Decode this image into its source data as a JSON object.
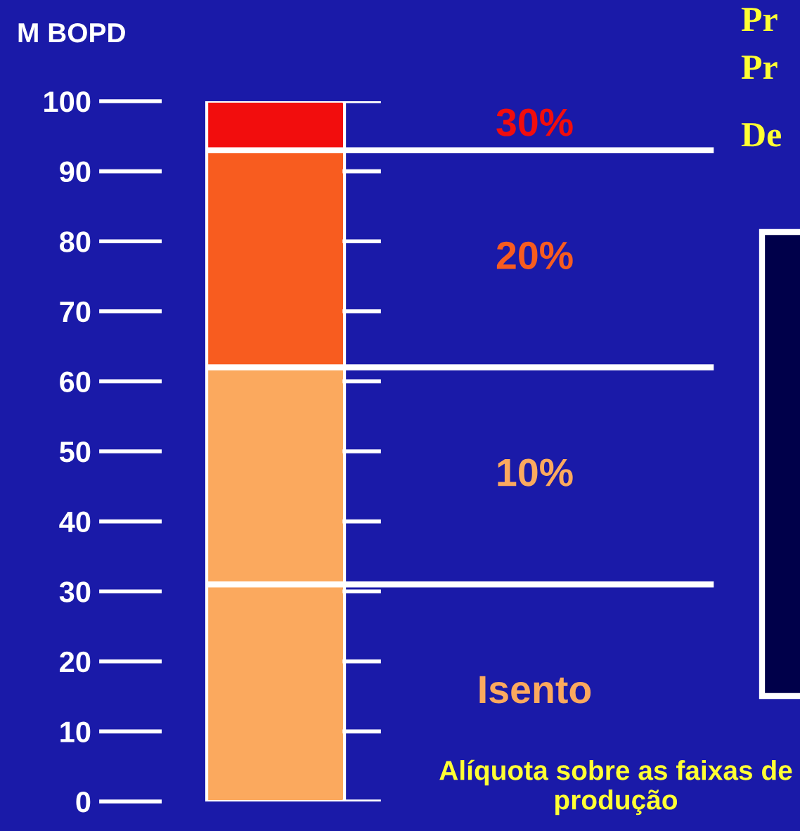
{
  "chart_data": {
    "type": "bar",
    "stacked": true,
    "categories": [
      null
    ],
    "ylabel": "M BOPD",
    "ylim": [
      0,
      100
    ],
    "yticks": [
      0,
      10,
      20,
      30,
      40,
      50,
      60,
      70,
      80,
      90,
      100
    ],
    "grid": false,
    "series": [
      {
        "name": "Isento",
        "color": "#fba95e",
        "values": [
          31
        ]
      },
      {
        "name": "10%",
        "color": "#fba95e",
        "values": [
          31
        ]
      },
      {
        "name": "20%",
        "color": "#f85c1f",
        "values": [
          31
        ]
      },
      {
        "name": "30%",
        "color": "#f20d0d",
        "values": [
          7
        ]
      }
    ],
    "ref_lines": [
      {
        "axis": "y",
        "value": 31,
        "color": "#ffffff"
      },
      {
        "axis": "y",
        "value": 62,
        "color": "#ffffff"
      },
      {
        "axis": "y",
        "value": 93,
        "color": "#ffffff"
      }
    ],
    "annotations": [
      "Alíquota sobre as faixas de produção",
      "Pr",
      "Pr",
      "De"
    ]
  }
}
